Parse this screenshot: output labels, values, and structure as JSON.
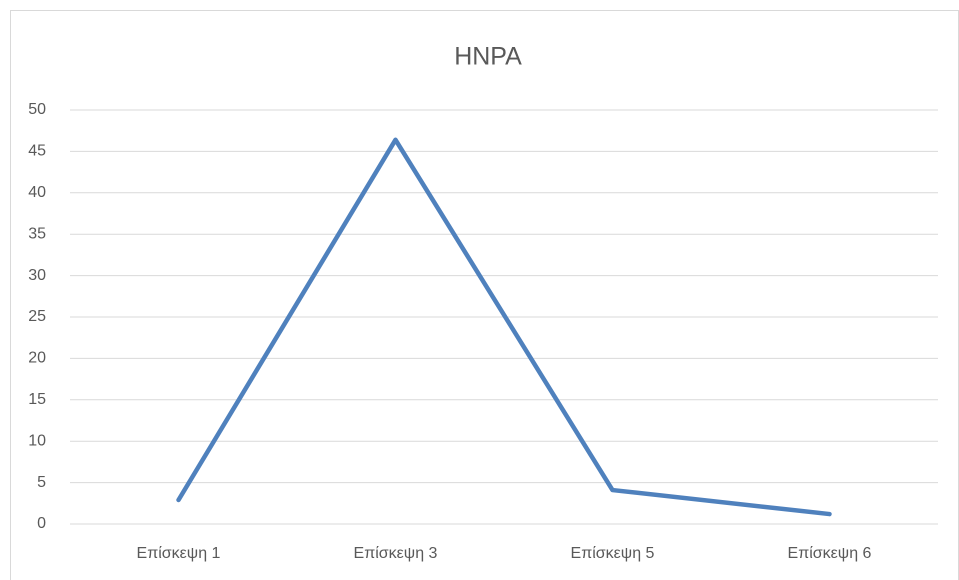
{
  "chart_data": {
    "type": "line",
    "title": "HNPA",
    "categories": [
      "Επίσκεψη 1",
      "Επίσκεψη 3",
      "Επίσκεψη 5",
      "Επίσκεψη 6"
    ],
    "series": [
      {
        "name": "HNPA",
        "color": "#4f81bd",
        "values": [
          2.9,
          46.4,
          4.1,
          1.2
        ]
      }
    ],
    "ylim": [
      0,
      50
    ],
    "yticks": [
      0,
      5,
      10,
      15,
      20,
      25,
      30,
      35,
      40,
      45,
      50
    ],
    "grid": true
  }
}
